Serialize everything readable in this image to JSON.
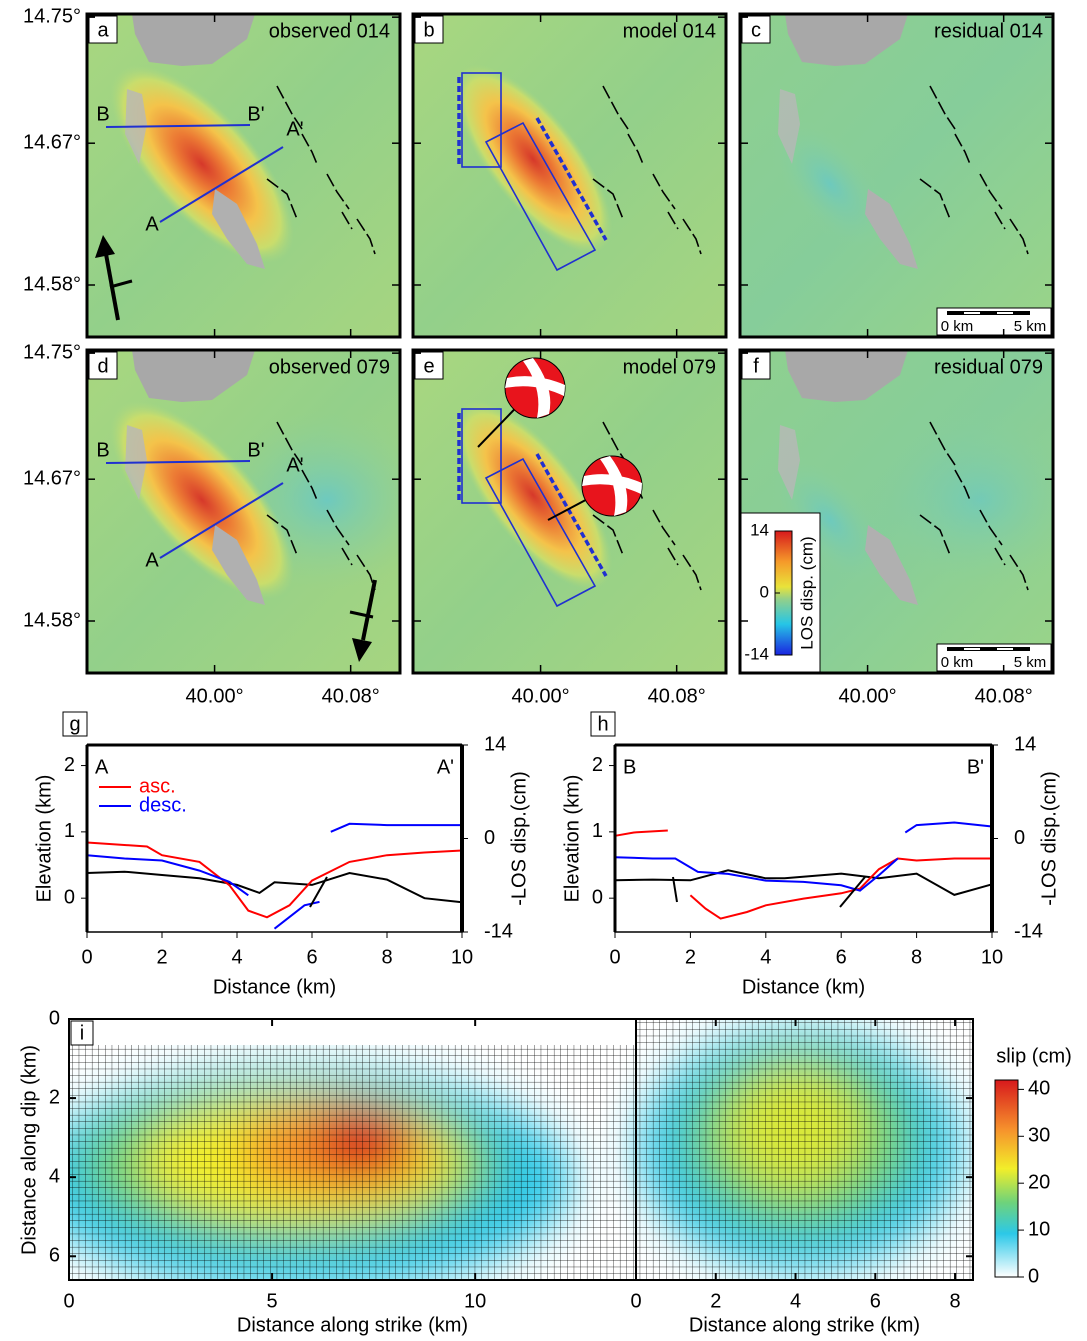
{
  "maps": {
    "latlim": [
      14.547,
      14.752
    ],
    "lonlim": [
      39.925,
      40.109
    ],
    "lat_ticks": [
      {
        "value": 14.75,
        "label": "14.75°"
      },
      {
        "value": 14.67,
        "label": "14.67°"
      },
      {
        "value": 14.58,
        "label": "14.58°"
      }
    ],
    "lon_ticks": [
      {
        "value": 40.0,
        "label": "40.00°"
      },
      {
        "value": 40.08,
        "label": "40.08°"
      }
    ],
    "panels": [
      {
        "letter": "a",
        "title": "observed 014"
      },
      {
        "letter": "b",
        "title": "model 014"
      },
      {
        "letter": "c",
        "title": "residual 014"
      },
      {
        "letter": "d",
        "title": "observed 079"
      },
      {
        "letter": "e",
        "title": "model 079"
      },
      {
        "letter": "f",
        "title": "residual 079"
      }
    ],
    "profile_labels": [
      "A",
      "A'",
      "B",
      "B'"
    ],
    "scale_bar": {
      "start": "0 km",
      "end": "5 km"
    },
    "colorbar": {
      "title": "LOS disp. (cm)",
      "lim": [
        -14,
        14
      ],
      "ticks": [
        14,
        0,
        -14
      ]
    }
  },
  "chart_data": [
    {
      "type": "line",
      "panel_label": "g",
      "start_label": "A",
      "end_label": "A'",
      "xlabel": "Distance (km)",
      "ylabel": "Elevation (km)",
      "y2label": "-LOS disp.(cm)",
      "xlim": [
        0,
        10
      ],
      "xticks": [
        0,
        2,
        4,
        6,
        8,
        10
      ],
      "ylim": [
        -0.51,
        2.31
      ],
      "yticks": [
        0,
        1,
        2
      ],
      "y2lim": [
        -14,
        14
      ],
      "y2ticks": [
        14,
        0,
        -14
      ],
      "legend": "upper left",
      "series": [
        {
          "name": "asc.",
          "color": "#ff0000",
          "axis": "y2",
          "x": [
            0,
            1.6,
            2,
            3,
            3.8,
            4.3,
            4.8,
            5.4,
            6,
            7,
            8,
            9,
            10
          ],
          "values": [
            -0.6,
            -1.2,
            -2.5,
            -3.5,
            -7,
            -10.8,
            -11.8,
            -10,
            -6.3,
            -3.5,
            -2.5,
            -2.1,
            -1.8
          ]
        },
        {
          "name": "desc.",
          "color": "#0000ff",
          "axis": "y2",
          "x": [
            0,
            1,
            2,
            3,
            3.8,
            4.3,
            null,
            5,
            5.8,
            6.2,
            null,
            6.5,
            7,
            8,
            9,
            10
          ],
          "values": [
            -2.5,
            -3,
            -3.3,
            -4.8,
            -6.5,
            -8.5,
            null,
            -13.5,
            -10,
            -9.5,
            null,
            1,
            2.2,
            2,
            2,
            2
          ]
        }
      ],
      "elevation": {
        "color": "#000000",
        "x": [
          0,
          1,
          2,
          3,
          4,
          4.6,
          5,
          6,
          7,
          8,
          9,
          10
        ],
        "values": [
          0.38,
          0.4,
          0.35,
          0.3,
          0.2,
          0.08,
          0.24,
          0.2,
          0.38,
          0.28,
          0,
          -0.06
        ]
      }
    },
    {
      "type": "line",
      "panel_label": "h",
      "start_label": "B",
      "end_label": "B'",
      "xlabel": "Distance (km)",
      "ylabel": "Elevation (km)",
      "y2label": "-LOS disp.(cm)",
      "xlim": [
        0,
        10
      ],
      "xticks": [
        0,
        2,
        4,
        6,
        8,
        10
      ],
      "ylim": [
        -0.51,
        2.31
      ],
      "yticks": [
        0,
        1,
        2
      ],
      "y2lim": [
        -14,
        14
      ],
      "y2ticks": [
        14,
        0,
        -14
      ],
      "series": [
        {
          "color": "#ff0000",
          "axis": "y2",
          "x": [
            0,
            0.5,
            1.4,
            null,
            2,
            2.4,
            2.8,
            3.5,
            4,
            5,
            6,
            6.5,
            7,
            7.5,
            8,
            9,
            10
          ],
          "values": [
            0.4,
            0.9,
            1.2,
            null,
            -8.5,
            -10.5,
            -12,
            -11,
            -10,
            -9,
            -8.2,
            -7.5,
            -4.6,
            -3,
            -3.3,
            -3,
            -3
          ]
        },
        {
          "color": "#0000ff",
          "axis": "y2",
          "x": [
            0,
            1,
            1.6,
            2.2,
            3,
            4,
            5,
            6,
            6.5,
            7,
            7.5,
            null,
            7.7,
            8,
            9,
            10
          ],
          "values": [
            -2.8,
            -3,
            -3,
            -5,
            -5.3,
            -6.3,
            -6.5,
            -7,
            -7.8,
            -5.5,
            -3,
            null,
            0.9,
            2,
            2.4,
            1.8
          ]
        }
      ],
      "elevation": {
        "color": "#000000",
        "x": [
          0,
          1,
          2,
          3,
          4,
          4.5,
          6,
          7,
          8,
          9,
          10
        ],
        "values": [
          0.27,
          0.28,
          0.27,
          0.42,
          0.3,
          0.3,
          0.37,
          0.3,
          0.37,
          0.05,
          0.21
        ]
      }
    }
  ],
  "slip": {
    "panel_label": "i",
    "ylabel": "Distance along dip (km)",
    "ylim": [
      0,
      6.6
    ],
    "yticks": [
      0,
      2,
      4,
      6
    ],
    "segments": [
      {
        "xlabel": "Distance along strike (km)",
        "xlim": [
          0,
          13.96
        ],
        "xticks": [
          0,
          5,
          10
        ]
      },
      {
        "xlabel": "Distance along strike (km)",
        "xlim": [
          0,
          8.45
        ],
        "xticks": [
          0,
          2,
          4,
          6,
          8
        ]
      }
    ],
    "colorbar": {
      "title": "slip (cm)",
      "lim": [
        0,
        42
      ],
      "ticks": [
        0,
        10,
        20,
        30,
        40
      ]
    }
  }
}
